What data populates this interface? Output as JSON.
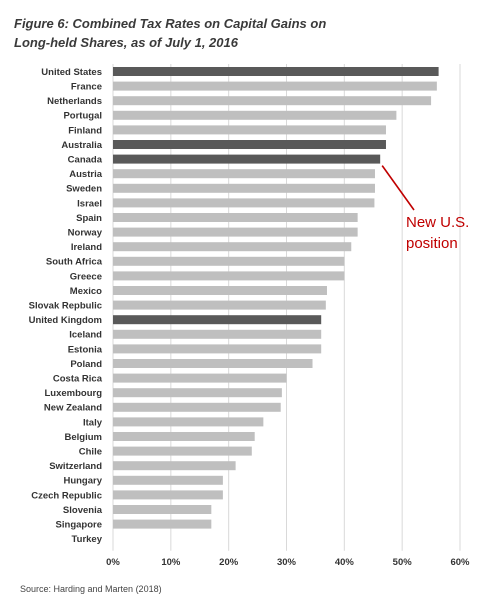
{
  "title_line1": "Figure 6: Combined Tax Rates on Capital Gains on",
  "title_line2": "Long-held Shares, as of July 1, 2016",
  "source": "Source: Harding and Marten (2018)",
  "annotation_line1": "New U.S.",
  "annotation_line2": "position",
  "colors": {
    "bar_default": "#bfbfbf",
    "bar_highlight": "#595959",
    "grid": "#d9d9d9",
    "annotation": "#c00000"
  },
  "chart_data": {
    "type": "bar",
    "orientation": "horizontal",
    "title": "Figure 6: Combined Tax Rates on Capital Gains on Long-held Shares, as of July 1, 2016",
    "xlabel": "",
    "ylabel": "",
    "xlim": [
      0,
      60
    ],
    "ticks": [
      "0%",
      "10%",
      "20%",
      "30%",
      "40%",
      "50%",
      "60%"
    ],
    "tick_values": [
      0,
      10,
      20,
      30,
      40,
      50,
      60
    ],
    "grid": true,
    "categories": [
      "United States",
      "France",
      "Netherlands",
      "Portugal",
      "Finland",
      "Australia",
      "Canada",
      "Austria",
      "Sweden",
      "Israel",
      "Spain",
      "Norway",
      "Ireland",
      "South Africa",
      "Greece",
      "Mexico",
      "Slovak Repbulic",
      "United Kingdom",
      "Iceland",
      "Estonia",
      "Poland",
      "Costa Rica",
      "Luxembourg",
      "New Zealand",
      "Italy",
      "Belgium",
      "Chile",
      "Switzerland",
      "Hungary",
      "Czech Republic",
      "Slovenia",
      "Singapore",
      "Turkey"
    ],
    "values": [
      56.3,
      56.0,
      55.0,
      49.0,
      47.2,
      47.2,
      46.2,
      45.3,
      45.3,
      45.2,
      42.3,
      42.3,
      41.2,
      40.0,
      40.0,
      37.0,
      36.8,
      36.0,
      36.0,
      36.0,
      34.5,
      30.0,
      29.2,
      29.0,
      26.0,
      24.5,
      24.0,
      21.2,
      19.0,
      19.0,
      17.0,
      17.0,
      0
    ],
    "highlighted": [
      "United States",
      "Australia",
      "Canada",
      "United Kingdom"
    ]
  }
}
